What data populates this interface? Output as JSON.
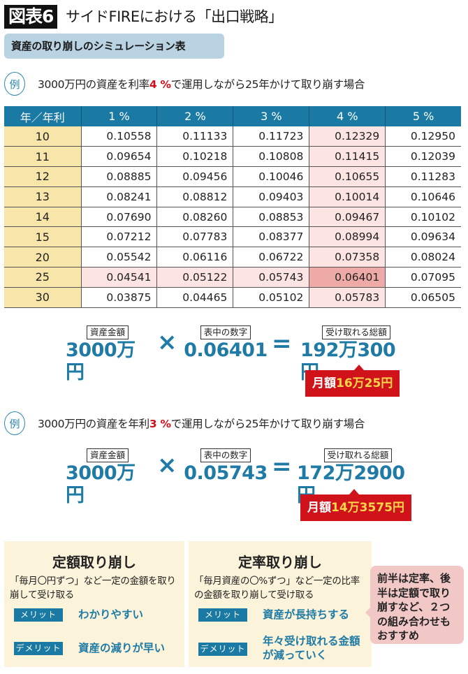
{
  "header": {
    "figure_label": "図表6",
    "title": "サイドFIREにおける「出口戦略」",
    "subtitle": "資産の取り崩しのシミュレーション表"
  },
  "examples": [
    {
      "badge": "例",
      "text_before": "3000万円の資産を利率",
      "highlight": "4 %",
      "text_after": "で運用しながら25年かけて取り崩す場合",
      "formula": {
        "asset_label": "資産金額",
        "asset_value": "3000万円",
        "times": "×",
        "factor_label": "表中の数字",
        "factor_value": "0.06401",
        "equals": "=",
        "total_label": "受け取れる総額",
        "total_value": "192万300円",
        "monthly_prefix": "月額",
        "monthly_value": "16万25円"
      }
    },
    {
      "badge": "例",
      "text_before": "3000万円の資産を年利",
      "highlight": "3 %",
      "text_after": "で運用しながら25年かけて取り崩す場合",
      "formula": {
        "asset_label": "資産金額",
        "asset_value": "3000万円",
        "times": "×",
        "factor_label": "表中の数字",
        "factor_value": "0.05743",
        "equals": "=",
        "total_label": "受け取れる総額",
        "total_value": "172万2900円",
        "monthly_prefix": "月額",
        "monthly_value": "14万3575円"
      }
    }
  ],
  "chart_data": {
    "type": "table",
    "title": "資産の取り崩しのシミュレーション表",
    "columns": [
      "年／年利",
      "1 %",
      "2 %",
      "3 %",
      "4 %",
      "5 %"
    ],
    "rows": [
      {
        "year": "10",
        "values": [
          "0.10558",
          "0.11133",
          "0.11723",
          "0.12329",
          "0.12950"
        ]
      },
      {
        "year": "11",
        "values": [
          "0.09654",
          "0.10218",
          "0.10808",
          "0.11415",
          "0.12039"
        ]
      },
      {
        "year": "12",
        "values": [
          "0.08885",
          "0.09456",
          "0.10046",
          "0.10655",
          "0.11283"
        ]
      },
      {
        "year": "13",
        "values": [
          "0.08241",
          "0.08812",
          "0.09403",
          "0.10014",
          "0.10646"
        ]
      },
      {
        "year": "14",
        "values": [
          "0.07690",
          "0.08260",
          "0.08853",
          "0.09467",
          "0.10102"
        ]
      },
      {
        "year": "15",
        "values": [
          "0.07212",
          "0.07783",
          "0.08377",
          "0.08994",
          "0.09634"
        ]
      },
      {
        "year": "20",
        "values": [
          "0.05542",
          "0.06116",
          "0.06722",
          "0.07358",
          "0.08024"
        ]
      },
      {
        "year": "25",
        "values": [
          "0.04541",
          "0.05122",
          "0.05743",
          "0.06401",
          "0.07095"
        ]
      },
      {
        "year": "30",
        "values": [
          "0.03875",
          "0.04465",
          "0.05102",
          "0.05783",
          "0.06505"
        ]
      }
    ],
    "highlights": {
      "column": "4 %",
      "row": "25",
      "cell": [
        "25",
        "4 %"
      ]
    },
    "colors": {
      "header": "#1b7aa3",
      "year_column": "#f7e5a9",
      "highlight": "#fbe4e2",
      "highlight_cell": "#eeaaa7"
    }
  },
  "methods": [
    {
      "title": "定額取り崩し",
      "description": "「毎月〇円ずつ」など一定の金額を取り崩して受け取る",
      "merit_label": "メリット",
      "merit": "わかりやすい",
      "demerit_label": "デメリット",
      "demerit": "資産の減りが早い"
    },
    {
      "title": "定率取り崩し",
      "description": "「毎月資産の〇%ずつ」など一定の比率の金額を取り崩して受け取る",
      "merit_label": "メリット",
      "merit": "資産が長持ちする",
      "demerit_label": "デメリット",
      "demerit": "年々受け取れる金額が減っていく"
    }
  ],
  "tip": "前半は定率、後半は定額で取り崩すなど、２つの組み合わせもおすすめ",
  "colors": {
    "accent_blue": "#1f7ba6",
    "red": "#d0121b",
    "yellow": "#ffd54a",
    "box_bg": "#fbf3da",
    "tip_bg": "#f2c8c6"
  }
}
